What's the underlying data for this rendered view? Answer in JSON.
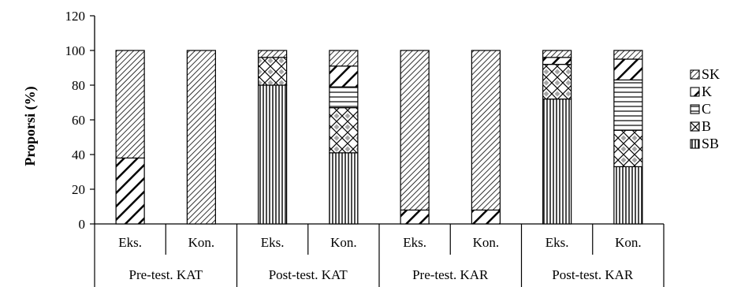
{
  "chart_data": {
    "type": "bar",
    "stacked": true,
    "title": "",
    "xlabel": "",
    "ylabel": "Proporsi (%)",
    "ylim": [
      0,
      120
    ],
    "yticks": [
      0,
      20,
      40,
      60,
      80,
      100,
      120
    ],
    "grid": false,
    "legend_position": "right",
    "categories": [
      "Eks.",
      "Kon.",
      "Eks.",
      "Kon.",
      "Eks.",
      "Kon.",
      "Eks.",
      "Kon."
    ],
    "groups": [
      "Pre-test. KAT",
      "Post-test. KAT",
      "Pre-test. KAR",
      "Post-test. KAR"
    ],
    "series": [
      {
        "name": "SB",
        "pattern": "vertical",
        "values": [
          0,
          0,
          80,
          41,
          0,
          0,
          72,
          33
        ]
      },
      {
        "name": "B",
        "pattern": "diamond",
        "values": [
          0,
          0,
          16,
          26,
          0,
          0,
          20,
          21
        ]
      },
      {
        "name": "C",
        "pattern": "horizontal",
        "values": [
          0,
          0,
          0,
          12,
          0,
          0,
          0,
          29
        ]
      },
      {
        "name": "K",
        "pattern": "wide-diagonal",
        "values": [
          38,
          0,
          0,
          12,
          8,
          8,
          4,
          12
        ]
      },
      {
        "name": "SK",
        "pattern": "fine-diagonal",
        "values": [
          62,
          100,
          4,
          9,
          92,
          92,
          4,
          5
        ]
      }
    ],
    "legend_order": [
      "SK",
      "K",
      "C",
      "B",
      "SB"
    ]
  }
}
